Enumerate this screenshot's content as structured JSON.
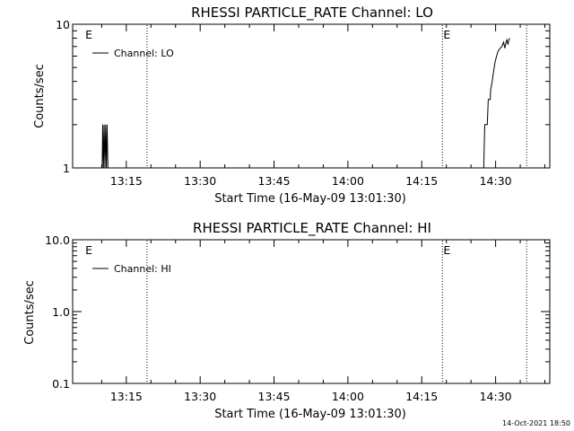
{
  "footer_timestamp": "14-Oct-2021 18:50",
  "chart_data": [
    {
      "type": "line",
      "title": "RHESSI PARTICLE_RATE Channel: LO",
      "xlabel": "Start Time (16-May-09 13:01:30)",
      "ylabel": "Counts/sec",
      "yscale": "log",
      "ylim": [
        1,
        10
      ],
      "xlim_minutes": [
        5,
        43
      ],
      "x_ticks": [
        {
          "min": 15,
          "label": "13:15"
        },
        {
          "min": 30,
          "label": "13:30"
        },
        {
          "min": 45,
          "label": "13:45"
        },
        {
          "min": 60,
          "label": "14:00"
        },
        {
          "min": 75,
          "label": "14:15"
        },
        {
          "min": 90,
          "label": "14:30"
        }
      ],
      "y_ticks": [
        {
          "value": 1,
          "label": "1"
        },
        {
          "value": 10,
          "label": "10"
        }
      ],
      "legend": {
        "label": "Channel: LO",
        "position": "top-left"
      },
      "event_markers": [
        {
          "min": 6.5,
          "label": "E",
          "dotted_line": false
        },
        {
          "min": 19.2,
          "label": "",
          "dotted_line": true
        },
        {
          "min": 79.2,
          "label": "E",
          "dotted_line": true
        },
        {
          "min": 96.3,
          "label": "",
          "dotted_line": true
        }
      ],
      "series": [
        {
          "points": [
            [
              10.1,
              1
            ],
            [
              10.2,
              2
            ],
            [
              10.35,
              1
            ],
            [
              10.5,
              2
            ],
            [
              10.65,
              1
            ],
            [
              10.8,
              2
            ],
            [
              10.95,
              1
            ],
            [
              11.1,
              2
            ],
            [
              11.25,
              1
            ],
            [
              11.4,
              1
            ],
            [
              87.6,
              1
            ],
            [
              87.7,
              1.5
            ],
            [
              87.8,
              2
            ],
            [
              88.3,
              2
            ],
            [
              88.5,
              3
            ],
            [
              88.9,
              3
            ],
            [
              89.0,
              3.5
            ],
            [
              89.3,
              4
            ],
            [
              89.5,
              4.5
            ],
            [
              89.7,
              5
            ],
            [
              89.9,
              5.5
            ],
            [
              90.2,
              6
            ],
            [
              90.5,
              6.5
            ],
            [
              90.9,
              6.8
            ],
            [
              91.3,
              7
            ],
            [
              91.6,
              7.5
            ],
            [
              91.9,
              6.8
            ],
            [
              92.1,
              7.5
            ],
            [
              92.3,
              7.8
            ],
            [
              92.5,
              7.2
            ],
            [
              92.7,
              7.8
            ],
            [
              92.9,
              8
            ]
          ]
        }
      ]
    },
    {
      "type": "line",
      "title": "RHESSI PARTICLE_RATE Channel: HI",
      "xlabel": "Start Time (16-May-09 13:01:30)",
      "ylabel": "Counts/sec",
      "yscale": "log",
      "ylim": [
        0.1,
        10
      ],
      "y_ticks": [
        {
          "value": 0.1,
          "label": "0.1"
        },
        {
          "value": 1,
          "label": "1.0"
        },
        {
          "value": 10,
          "label": "10.0"
        }
      ],
      "x_ticks": [
        {
          "min": 15,
          "label": "13:15"
        },
        {
          "min": 30,
          "label": "13:30"
        },
        {
          "min": 45,
          "label": "13:45"
        },
        {
          "min": 60,
          "label": "14:00"
        },
        {
          "min": 75,
          "label": "14:15"
        },
        {
          "min": 90,
          "label": "14:30"
        }
      ],
      "legend": {
        "label": "Channel: HI",
        "position": "top-left"
      },
      "event_markers": [
        {
          "min": 6.5,
          "label": "E",
          "dotted_line": false
        },
        {
          "min": 19.2,
          "label": "",
          "dotted_line": true
        },
        {
          "min": 79.2,
          "label": "E",
          "dotted_line": true
        },
        {
          "min": 96.3,
          "label": "",
          "dotted_line": true
        }
      ],
      "series": [
        {
          "points": []
        }
      ]
    }
  ]
}
